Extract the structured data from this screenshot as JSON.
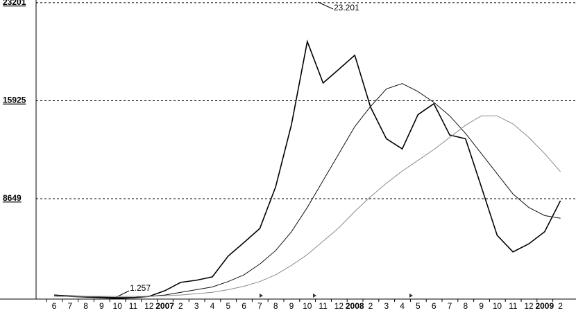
{
  "chart_data": {
    "type": "line",
    "categories": [
      "6",
      "7",
      "8",
      "9",
      "10",
      "11",
      "12",
      "2007",
      "2",
      "3",
      "4",
      "5",
      "6",
      "7",
      "8",
      "9",
      "10",
      "11",
      "12",
      "2008",
      "2",
      "3",
      "4",
      "5",
      "6",
      "7",
      "8",
      "9",
      "10",
      "11",
      "12",
      "2009",
      "2"
    ],
    "series": [
      {
        "color": "#000000",
        "values": [
          1500,
          1400,
          1350,
          1300,
          1257,
          1300,
          1400,
          1820,
          2440,
          2600,
          2850,
          4390,
          5400,
          6440,
          9530,
          14150,
          20320,
          17240,
          18260,
          19300,
          15440,
          13100,
          12350,
          14900,
          15700,
          13380,
          13100,
          9530,
          5930,
          4700,
          5300,
          6200,
          8500
        ]
      },
      {
        "color": "#111111",
        "values": [
          1500,
          1450,
          1400,
          1350,
          1320,
          1320,
          1400,
          1500,
          1700,
          1900,
          2100,
          2500,
          3000,
          3800,
          4800,
          6200,
          8000,
          10000,
          12000,
          14000,
          15500,
          16800,
          17200,
          16600,
          15800,
          14800,
          13500,
          12000,
          10500,
          9000,
          8000,
          7400,
          7200
        ]
      },
      {
        "color": "#8a8a8a",
        "values": [
          1400,
          1400,
          1400,
          1400,
          1400,
          1400,
          1400,
          1450,
          1500,
          1600,
          1700,
          1900,
          2150,
          2500,
          3000,
          3700,
          4500,
          5500,
          6500,
          7700,
          8800,
          9800,
          10700,
          11500,
          12300,
          13200,
          14100,
          14800,
          14800,
          14200,
          13200,
          12000,
          10650
        ]
      }
    ],
    "ylim": [
      1200,
      23400
    ],
    "yticks": [
      8649,
      15925,
      23201
    ],
    "grid": true,
    "annotations": [
      "23.201",
      "1.257"
    ]
  }
}
